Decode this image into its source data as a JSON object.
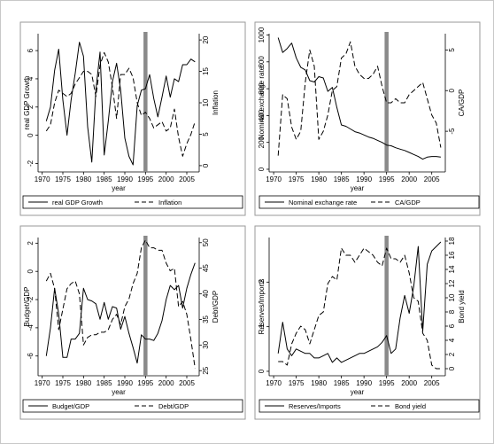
{
  "chart_data": [
    {
      "type": "line",
      "xlabel": "year",
      "ylabel_left": "real GDP Growth",
      "ylabel_right": "Inflation",
      "xlim": [
        1969,
        2008
      ],
      "ylim_left": [
        -2.6,
        7.2
      ],
      "ylim_right": [
        -1,
        21
      ],
      "x_ticks": [
        1970,
        1975,
        1980,
        1985,
        1990,
        1995,
        2000,
        2005
      ],
      "y_ticks_left": [
        -2,
        0,
        2,
        4,
        6
      ],
      "y_ticks_right": [
        0,
        5,
        10,
        15,
        20
      ],
      "reference_line_year": 1995,
      "series": [
        {
          "name": "real GDP Growth",
          "axis": "left",
          "style": "solid",
          "x": [
            1971,
            1972,
            1973,
            1974,
            1975,
            1976,
            1977,
            1978,
            1979,
            1980,
            1981,
            1982,
            1983,
            1984,
            1985,
            1986,
            1987,
            1988,
            1989,
            1990,
            1991,
            1992,
            1993,
            1994,
            1995,
            1996,
            1997,
            1998,
            1999,
            2000,
            2001,
            2002,
            2003,
            2004,
            2005,
            2006,
            2007
          ],
          "y": [
            1.0,
            2.0,
            4.6,
            6.1,
            2.5,
            0.0,
            2.5,
            4.4,
            6.6,
            5.6,
            0.6,
            -1.9,
            3.2,
            5.9,
            -1.4,
            1.0,
            3.8,
            5.1,
            3.2,
            -0.2,
            -1.5,
            -2.1,
            2.1,
            3.2,
            3.3,
            4.3,
            2.6,
            1.3,
            2.7,
            4.2,
            2.7,
            4.0,
            3.8,
            5.0,
            5.0,
            5.4,
            5.2
          ]
        },
        {
          "name": "Inflation",
          "axis": "right",
          "style": "dashed",
          "x": [
            1971,
            1972,
            1973,
            1974,
            1975,
            1976,
            1977,
            1978,
            1979,
            1980,
            1981,
            1982,
            1983,
            1984,
            1985,
            1986,
            1987,
            1988,
            1989,
            1990,
            1991,
            1992,
            1993,
            1994,
            1995,
            1996,
            1997,
            1998,
            1999,
            2000,
            2001,
            2002,
            2003,
            2004,
            2005,
            2006,
            2007
          ],
          "y": [
            5.5,
            6.5,
            10,
            12,
            11.5,
            11,
            11.5,
            13,
            14,
            15,
            15,
            14.5,
            11,
            16,
            18,
            16.5,
            12.5,
            7.5,
            14.5,
            14.5,
            15.5,
            14,
            10,
            8,
            8.5,
            7.5,
            6,
            6.5,
            7,
            5.5,
            6,
            9,
            4.5,
            1.5,
            3.5,
            5,
            7
          ]
        }
      ],
      "legend": [
        "real GDP Growth",
        "Inflation"
      ]
    },
    {
      "type": "line",
      "xlabel": "year",
      "ylabel_left": "Nominal exchange rate",
      "ylabel_right": "CA/GDP",
      "xlim": [
        1969,
        2008
      ],
      "ylim_left": [
        -20,
        1010
      ],
      "ylim_right": [
        -10,
        7
      ],
      "x_ticks": [
        1970,
        1975,
        1980,
        1985,
        1990,
        1995,
        2000,
        2005
      ],
      "y_ticks_left": [
        0,
        200,
        400,
        600,
        800,
        1000
      ],
      "y_ticks_right": [
        -5,
        0,
        5
      ],
      "reference_line_year": 1995,
      "series": [
        {
          "name": "Nominal exchange rate",
          "axis": "left",
          "style": "solid",
          "x": [
            1971,
            1972,
            1973,
            1974,
            1975,
            1976,
            1977,
            1978,
            1979,
            1980,
            1981,
            1982,
            1983,
            1984,
            1985,
            1986,
            1987,
            1988,
            1989,
            1990,
            1991,
            1992,
            1993,
            1994,
            1995,
            1996,
            1997,
            1998,
            1999,
            2000,
            2001,
            2002,
            2003,
            2004,
            2005,
            2006,
            2007
          ],
          "y": [
            980,
            870,
            900,
            940,
            830,
            760,
            740,
            660,
            650,
            690,
            680,
            580,
            610,
            460,
            330,
            320,
            300,
            280,
            270,
            255,
            240,
            230,
            215,
            200,
            180,
            175,
            160,
            150,
            140,
            125,
            110,
            95,
            75,
            90,
            95,
            95,
            90
          ]
        },
        {
          "name": "CA/GDP",
          "axis": "right",
          "style": "dashed",
          "x": [
            1971,
            1972,
            1973,
            1974,
            1975,
            1976,
            1977,
            1978,
            1979,
            1980,
            1981,
            1982,
            1983,
            1984,
            1985,
            1986,
            1987,
            1988,
            1989,
            1990,
            1991,
            1992,
            1993,
            1994,
            1995,
            1996,
            1997,
            1998,
            1999,
            2000,
            2001,
            2002,
            2003,
            2004,
            2005,
            2006,
            2007
          ],
          "y": [
            -8,
            -0.5,
            -1,
            -4.5,
            -6,
            -5,
            1,
            5,
            3,
            -6,
            -5,
            -3,
            0,
            0.5,
            4,
            4.5,
            6,
            3,
            2,
            1.5,
            1.5,
            2,
            3,
            0.5,
            -1.5,
            -1.5,
            -1,
            -1.5,
            -1.5,
            -0.5,
            0,
            0.5,
            1,
            -1,
            -3,
            -4,
            -7
          ]
        }
      ],
      "legend": [
        "Nominal exchange rate",
        "CA/GDP"
      ]
    },
    {
      "type": "line",
      "xlabel": "year",
      "ylabel_left": "Budget/GDP",
      "ylabel_right": "Debt/GDP",
      "xlim": [
        1969,
        2008
      ],
      "ylim_left": [
        -7.4,
        2.4
      ],
      "ylim_right": [
        24,
        51
      ],
      "x_ticks": [
        1970,
        1975,
        1980,
        1985,
        1990,
        1995,
        2000,
        2005
      ],
      "y_ticks_left": [
        -6,
        -4,
        -2,
        0,
        2
      ],
      "y_ticks_right": [
        25,
        30,
        35,
        40,
        45,
        50
      ],
      "reference_line_year": 1995,
      "series": [
        {
          "name": "Budget/GDP",
          "axis": "left",
          "style": "solid",
          "x": [
            1971,
            1972,
            1973,
            1974,
            1975,
            1976,
            1977,
            1978,
            1979,
            1980,
            1981,
            1982,
            1983,
            1984,
            1985,
            1986,
            1987,
            1988,
            1989,
            1990,
            1991,
            1992,
            1993,
            1994,
            1995,
            1996,
            1997,
            1998,
            1999,
            2000,
            2001,
            2002,
            2003,
            2004,
            2005,
            2006,
            2007
          ],
          "y": [
            -6,
            -4,
            -1.2,
            -3,
            -6.1,
            -6.1,
            -4.8,
            -4.8,
            -4.4,
            -1.2,
            -2,
            -2.1,
            -2.3,
            -3.4,
            -2.2,
            -3.4,
            -2.5,
            -2.6,
            -4.1,
            -3.2,
            -4.4,
            -5.4,
            -6.5,
            -4.5,
            -4.8,
            -4.8,
            -4.9,
            -4.4,
            -3.5,
            -2,
            -1,
            -1.3,
            -1,
            -2.6,
            -1.2,
            -0.2,
            0.6
          ]
        },
        {
          "name": "Debt/GDP",
          "axis": "right",
          "style": "dashed",
          "x": [
            1971,
            1972,
            1973,
            1974,
            1975,
            1976,
            1977,
            1978,
            1979,
            1980,
            1981,
            1982,
            1983,
            1984,
            1985,
            1986,
            1987,
            1988,
            1989,
            1990,
            1991,
            1992,
            1993,
            1994,
            1995,
            1996,
            1997,
            1998,
            1999,
            2000,
            2001,
            2002,
            2003,
            2004,
            2005,
            2006,
            2007
          ],
          "y": [
            42.5,
            44,
            41,
            33,
            37,
            41,
            42,
            42.5,
            40,
            30,
            31.5,
            32,
            32,
            32.5,
            32.5,
            33,
            35,
            36,
            34,
            37.5,
            39,
            42,
            44,
            49,
            50.5,
            49,
            49,
            48.5,
            48.5,
            46,
            44.5,
            45,
            37.5,
            38.5,
            36,
            31,
            25.5
          ]
        }
      ],
      "legend": [
        "Budget/GDP",
        "Debt/GDP"
      ]
    },
    {
      "type": "line",
      "xlabel": "year",
      "ylabel_left": "Reserves/Imports",
      "ylabel_right": "Bond yield",
      "xlim": [
        1969,
        2008
      ],
      "ylim_left": [
        -0.01,
        0.3
      ],
      "ylim_right": [
        -1,
        18.5
      ],
      "x_ticks": [
        1970,
        1975,
        1980,
        1985,
        1990,
        1995,
        2000,
        2005
      ],
      "y_ticks_left": [
        0,
        0.1,
        0.2
      ],
      "y_ticks_left_labels": [
        "0",
        ".1",
        ".2"
      ],
      "y_ticks_right": [
        0,
        2,
        4,
        6,
        8,
        10,
        12,
        14,
        16,
        18
      ],
      "reference_line_year": 1995,
      "series": [
        {
          "name": "Reserves/Imports",
          "axis": "left",
          "style": "solid",
          "x": [
            1971,
            1972,
            1973,
            1974,
            1975,
            1976,
            1977,
            1978,
            1979,
            1980,
            1981,
            1982,
            1983,
            1984,
            1985,
            1986,
            1987,
            1988,
            1989,
            1990,
            1991,
            1992,
            1993,
            1994,
            1995,
            1996,
            1997,
            1998,
            1999,
            2000,
            2001,
            2002,
            2003,
            2004,
            2005,
            2006,
            2007
          ],
          "y": [
            0.04,
            0.11,
            0.05,
            0.035,
            0.05,
            0.045,
            0.04,
            0.04,
            0.03,
            0.03,
            0.035,
            0.04,
            0.02,
            0.03,
            0.02,
            0.025,
            0.03,
            0.035,
            0.04,
            0.04,
            0.045,
            0.05,
            0.055,
            0.065,
            0.08,
            0.04,
            0.05,
            0.12,
            0.17,
            0.13,
            0.19,
            0.28,
            0.09,
            0.24,
            0.27,
            0.28,
            0.29
          ]
        },
        {
          "name": "Bond yield",
          "axis": "right",
          "style": "dashed",
          "x": [
            1971,
            1972,
            1973,
            1974,
            1975,
            1976,
            1977,
            1978,
            1979,
            1980,
            1981,
            1982,
            1983,
            1984,
            1985,
            1986,
            1987,
            1988,
            1989,
            1990,
            1991,
            1992,
            1993,
            1994,
            1995,
            1996,
            1997,
            1998,
            1999,
            2000,
            2001,
            2002,
            2003,
            2004,
            2005,
            2006,
            2007
          ],
          "y": [
            1,
            1,
            0.5,
            3.5,
            5,
            6,
            5.5,
            3.5,
            5.5,
            7.5,
            8,
            12,
            13,
            12.5,
            17,
            16,
            16,
            15,
            16,
            17,
            16.5,
            16,
            15,
            14.5,
            17,
            15.5,
            15.5,
            15,
            16,
            13.5,
            10,
            9.5,
            5,
            4,
            0.5,
            0,
            0
          ]
        }
      ],
      "legend": [
        "Reserves/Imports",
        "Bond yield"
      ]
    }
  ]
}
